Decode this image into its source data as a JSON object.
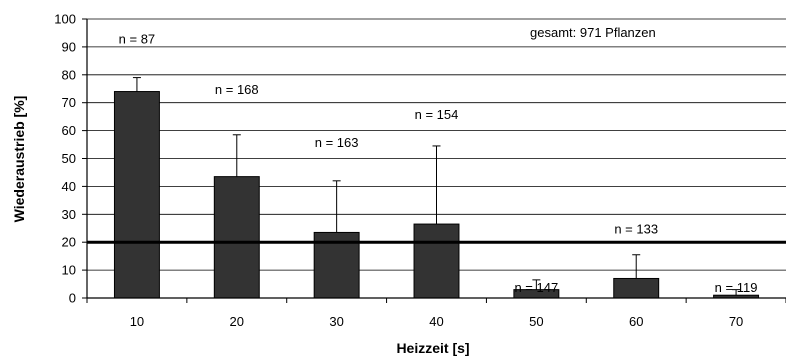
{
  "chart_data": {
    "type": "bar",
    "xlabel": "Heizzeit [s]",
    "ylabel": "Wiederaustrieb [%]",
    "ylim": [
      0,
      100
    ],
    "yticks": [
      0,
      10,
      20,
      30,
      40,
      50,
      60,
      70,
      80,
      90,
      100
    ],
    "categories": [
      "10",
      "20",
      "30",
      "40",
      "50",
      "60",
      "70"
    ],
    "values": [
      74,
      43.5,
      23.5,
      26.5,
      3,
      7,
      1
    ],
    "error_upper": [
      79,
      58.5,
      42,
      54.5,
      6.5,
      15.5,
      3
    ],
    "sample_sizes": [
      "n = 87",
      "n = 168",
      "n = 163",
      "n = 154",
      "n = 147",
      "n = 133",
      "n = 119"
    ],
    "sample_label_y": [
      93,
      75,
      56,
      66,
      4,
      25,
      4
    ],
    "total_label": "gesamt: 971 Pflanzen",
    "reference_line": 20,
    "bar_color": "#333333",
    "grid": true
  }
}
